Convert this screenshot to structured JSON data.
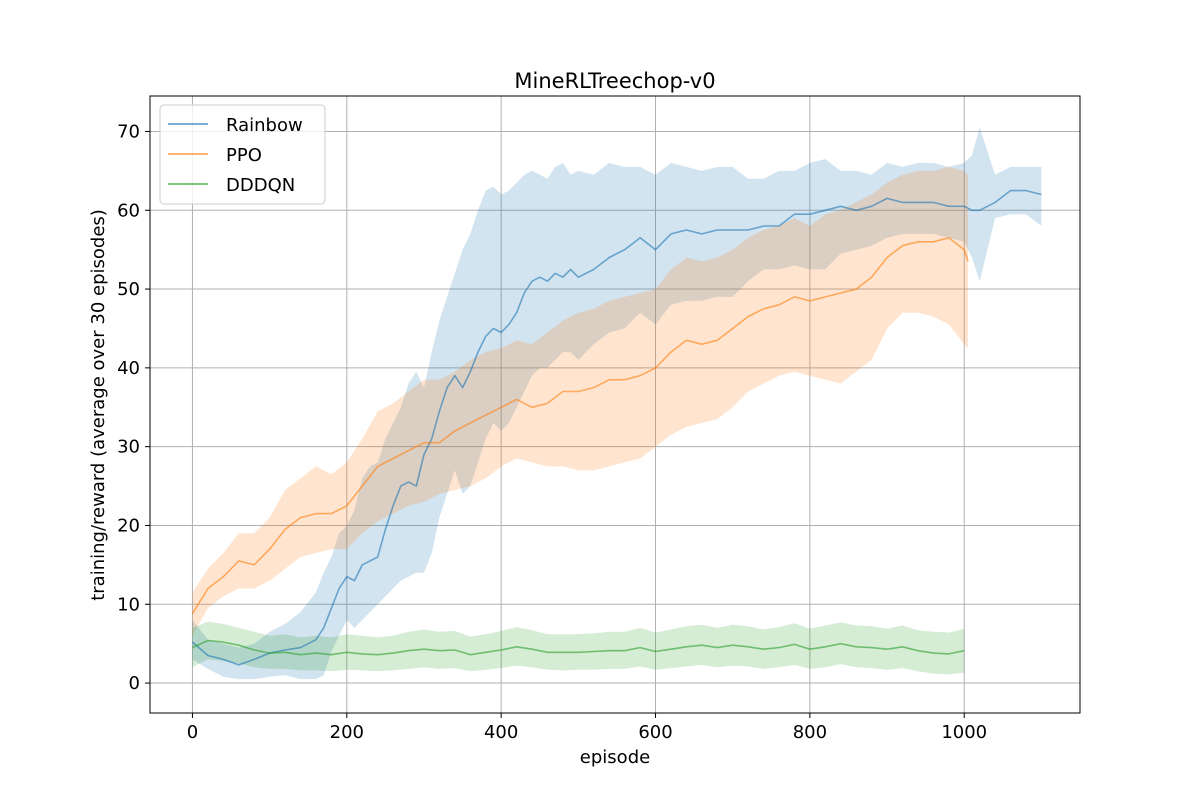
{
  "chart_data": {
    "type": "line",
    "title": "MineRLTreechop-v0",
    "xlabel": "episode",
    "ylabel": "training/reward (average over 30 episodes)",
    "xlim": [
      -55,
      1150
    ],
    "ylim": [
      -3.8,
      74.5
    ],
    "xticks": [
      0,
      200,
      400,
      600,
      800,
      1000
    ],
    "yticks": [
      0,
      10,
      20,
      30,
      40,
      50,
      60,
      70
    ],
    "grid": true,
    "legend_position": "top-left",
    "series": [
      {
        "name": "Rainbow",
        "color": "#1f77b4",
        "x": [
          0,
          20,
          40,
          60,
          80,
          100,
          120,
          140,
          160,
          170,
          180,
          190,
          200,
          210,
          220,
          230,
          240,
          250,
          260,
          270,
          280,
          290,
          300,
          310,
          320,
          330,
          340,
          350,
          360,
          370,
          380,
          390,
          400,
          410,
          420,
          430,
          440,
          450,
          460,
          470,
          480,
          490,
          500,
          520,
          540,
          560,
          580,
          600,
          620,
          640,
          660,
          680,
          700,
          720,
          740,
          760,
          780,
          800,
          820,
          840,
          860,
          880,
          900,
          920,
          940,
          960,
          980,
          1000,
          1010,
          1020,
          1040,
          1060,
          1080,
          1100
        ],
        "y": [
          5.2,
          3.5,
          3.0,
          2.3,
          3.0,
          3.8,
          4.2,
          4.5,
          5.5,
          7.0,
          9.5,
          12.0,
          13.5,
          13.0,
          15.0,
          15.5,
          16.0,
          19.5,
          22.5,
          25.0,
          25.5,
          25.0,
          29.0,
          31.0,
          34.5,
          37.5,
          39.0,
          37.5,
          39.5,
          42.0,
          44.0,
          45.0,
          44.5,
          45.5,
          47.0,
          49.5,
          51.0,
          51.5,
          51.0,
          52.0,
          51.5,
          52.5,
          51.5,
          52.5,
          54.0,
          55.0,
          56.5,
          55.0,
          57.0,
          57.5,
          57.0,
          57.5,
          57.5,
          57.5,
          58.0,
          58.0,
          59.5,
          59.5,
          60.0,
          60.5,
          60.0,
          60.5,
          61.5,
          61.0,
          61.0,
          61.0,
          60.5,
          60.5,
          60.0,
          60.0,
          61.0,
          62.5,
          62.5,
          62.0
        ],
        "band_low": [
          3.0,
          1.8,
          0.8,
          0.5,
          0.5,
          0.8,
          1.0,
          0.5,
          0.5,
          1.0,
          4.0,
          6.0,
          8.0,
          7.0,
          8.0,
          9.0,
          10.0,
          11.0,
          12.0,
          13.0,
          13.5,
          14.0,
          14.0,
          16.5,
          21.0,
          24.0,
          27.0,
          24.0,
          25.0,
          28.0,
          31.0,
          33.0,
          32.0,
          33.0,
          35.0,
          37.0,
          39.0,
          40.0,
          40.0,
          41.0,
          42.0,
          42.0,
          41.0,
          43.0,
          44.5,
          45.0,
          47.0,
          45.5,
          48.0,
          48.5,
          48.5,
          49.0,
          49.0,
          51.0,
          52.5,
          52.5,
          53.0,
          52.5,
          52.5,
          54.5,
          55.0,
          55.5,
          56.5,
          57.0,
          57.0,
          57.0,
          56.5,
          56.0,
          54.0,
          51.0,
          59.0,
          59.5,
          59.5,
          58.0
        ],
        "band_high": [
          8.0,
          5.5,
          5.0,
          4.5,
          5.0,
          6.5,
          7.5,
          9.0,
          11.5,
          14.0,
          16.0,
          19.0,
          20.0,
          22.0,
          26.0,
          27.5,
          28.0,
          31.0,
          33.0,
          35.0,
          38.0,
          39.5,
          37.5,
          42.0,
          46.0,
          49.0,
          52.0,
          55.0,
          57.0,
          60.0,
          62.5,
          63.0,
          62.0,
          62.5,
          63.5,
          64.5,
          65.0,
          64.5,
          64.0,
          65.5,
          66.0,
          64.5,
          65.0,
          64.5,
          66.0,
          65.5,
          65.5,
          64.5,
          66.0,
          65.5,
          65.0,
          65.5,
          65.5,
          64.0,
          64.0,
          65.0,
          65.0,
          66.0,
          66.5,
          65.0,
          65.0,
          64.5,
          66.0,
          65.5,
          66.0,
          66.0,
          65.5,
          66.0,
          67.0,
          70.5,
          64.5,
          65.5,
          65.5,
          65.5
        ]
      },
      {
        "name": "PPO",
        "color": "#ff7f0e",
        "x": [
          0,
          20,
          40,
          60,
          80,
          100,
          120,
          140,
          160,
          180,
          200,
          220,
          240,
          260,
          280,
          300,
          320,
          340,
          360,
          380,
          400,
          420,
          440,
          460,
          480,
          500,
          520,
          540,
          560,
          580,
          600,
          620,
          640,
          660,
          680,
          700,
          720,
          740,
          760,
          780,
          800,
          820,
          840,
          860,
          880,
          900,
          920,
          940,
          960,
          980,
          1000,
          1005
        ],
        "y": [
          8.8,
          12.0,
          13.5,
          15.5,
          15.0,
          17.0,
          19.5,
          21.0,
          21.5,
          21.5,
          22.5,
          25.0,
          27.5,
          28.5,
          29.5,
          30.5,
          30.5,
          32.0,
          33.0,
          34.0,
          35.0,
          36.0,
          35.0,
          35.5,
          37.0,
          37.0,
          37.5,
          38.5,
          38.5,
          39.0,
          40.0,
          42.0,
          43.5,
          43.0,
          43.5,
          45.0,
          46.5,
          47.5,
          48.0,
          49.0,
          48.5,
          49.0,
          49.5,
          50.0,
          51.5,
          54.0,
          55.5,
          56.0,
          56.0,
          56.5,
          55.0,
          53.5
        ],
        "band_low": [
          6.0,
          9.5,
          11.0,
          12.0,
          12.0,
          13.0,
          14.5,
          16.0,
          16.5,
          17.0,
          17.0,
          19.0,
          20.5,
          21.5,
          22.5,
          23.0,
          24.0,
          24.5,
          25.0,
          26.0,
          27.5,
          28.5,
          28.0,
          27.5,
          27.5,
          27.0,
          27.0,
          27.5,
          28.0,
          28.5,
          30.0,
          31.5,
          32.5,
          33.0,
          33.5,
          35.0,
          37.0,
          38.0,
          39.0,
          39.5,
          39.0,
          38.5,
          38.0,
          39.5,
          41.0,
          45.0,
          47.0,
          47.0,
          46.5,
          45.5,
          43.0,
          42.5
        ],
        "band_high": [
          11.5,
          14.5,
          16.5,
          19.0,
          19.0,
          21.0,
          24.5,
          26.0,
          27.5,
          26.5,
          28.0,
          31.0,
          34.5,
          35.5,
          37.0,
          38.5,
          38.5,
          39.5,
          41.0,
          42.0,
          42.5,
          43.5,
          43.0,
          44.5,
          46.0,
          47.0,
          47.5,
          48.5,
          49.0,
          49.5,
          50.0,
          52.5,
          54.0,
          53.5,
          54.0,
          55.0,
          56.5,
          57.5,
          58.0,
          59.0,
          58.0,
          59.5,
          60.0,
          61.0,
          62.0,
          63.5,
          64.5,
          65.0,
          65.0,
          65.5,
          65.0,
          64.5
        ]
      },
      {
        "name": "DDDQN",
        "color": "#2ca02c",
        "x": [
          0,
          20,
          40,
          60,
          80,
          100,
          120,
          140,
          160,
          180,
          200,
          220,
          240,
          260,
          280,
          300,
          320,
          340,
          360,
          380,
          400,
          420,
          440,
          460,
          480,
          500,
          520,
          540,
          560,
          580,
          600,
          620,
          640,
          660,
          680,
          700,
          720,
          740,
          760,
          780,
          800,
          820,
          840,
          860,
          880,
          900,
          920,
          940,
          960,
          980,
          1000
        ],
        "y": [
          4.5,
          5.4,
          5.2,
          4.8,
          4.2,
          3.8,
          3.9,
          3.6,
          3.8,
          3.6,
          3.9,
          3.7,
          3.6,
          3.8,
          4.1,
          4.3,
          4.1,
          4.2,
          3.6,
          3.9,
          4.2,
          4.6,
          4.3,
          3.9,
          3.9,
          3.9,
          4.0,
          4.1,
          4.1,
          4.5,
          4.0,
          4.3,
          4.6,
          4.8,
          4.5,
          4.8,
          4.6,
          4.3,
          4.5,
          4.9,
          4.3,
          4.6,
          5.0,
          4.6,
          4.5,
          4.3,
          4.6,
          4.1,
          3.8,
          3.7,
          4.1
        ],
        "band_low": [
          2.0,
          3.0,
          2.8,
          2.5,
          2.0,
          1.8,
          1.8,
          1.6,
          1.6,
          1.5,
          1.7,
          1.6,
          1.5,
          1.6,
          1.8,
          2.0,
          1.8,
          1.9,
          1.5,
          1.7,
          1.9,
          2.2,
          2.0,
          1.7,
          1.6,
          1.7,
          1.7,
          1.8,
          1.8,
          2.1,
          1.7,
          1.9,
          2.1,
          2.3,
          2.0,
          2.2,
          2.1,
          1.8,
          2.0,
          2.3,
          1.8,
          2.0,
          2.4,
          2.0,
          1.9,
          1.7,
          1.9,
          1.5,
          1.2,
          1.1,
          1.3
        ],
        "band_high": [
          7.0,
          7.8,
          7.5,
          7.0,
          6.5,
          6.0,
          6.2,
          5.8,
          6.0,
          5.8,
          6.2,
          6.0,
          5.8,
          6.0,
          6.5,
          6.8,
          6.5,
          6.6,
          5.9,
          6.2,
          6.6,
          7.1,
          6.7,
          6.2,
          6.2,
          6.2,
          6.3,
          6.5,
          6.5,
          7.0,
          6.4,
          6.8,
          7.2,
          7.4,
          7.0,
          7.4,
          7.2,
          6.8,
          7.1,
          7.6,
          6.9,
          7.3,
          7.7,
          7.3,
          7.2,
          6.9,
          7.3,
          6.7,
          6.5,
          6.4,
          6.9
        ]
      }
    ]
  }
}
